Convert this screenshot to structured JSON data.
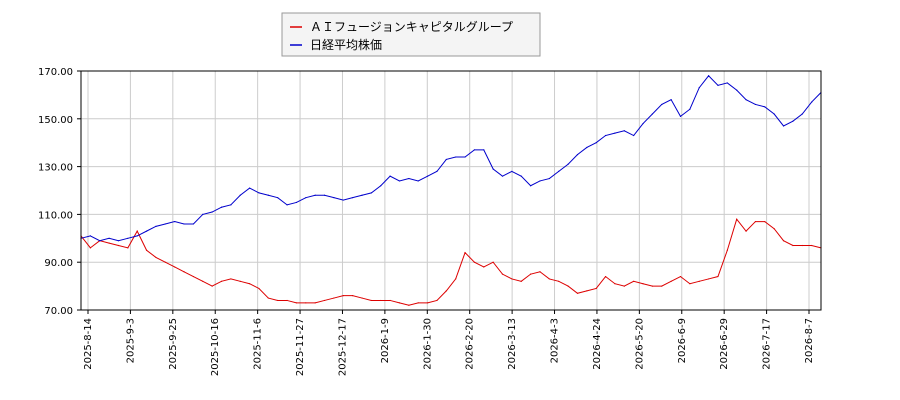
{
  "colors": {
    "series1": "#dd0000",
    "series2": "#0000cc",
    "grid": "#cccccc",
    "axis": "#000000",
    "legend_bg": "#f4f4f4",
    "legend_border": "#999999"
  },
  "chart_data": {
    "type": "line",
    "title": "",
    "xlabel": "",
    "ylabel": "",
    "grid": true,
    "legend_position": "top-center",
    "ylim": [
      70,
      170
    ],
    "y_ticks": [
      "70.00",
      "90.00",
      "110.00",
      "130.00",
      "150.00",
      "170.00"
    ],
    "x_ticks": [
      "2025-8-14",
      "2025-9-3",
      "2025-9-25",
      "2025-10-16",
      "2025-11-6",
      "2025-11-27",
      "2025-12-17",
      "2026-1-9",
      "2026-1-30",
      "2026-2-20",
      "2026-3-13",
      "2026-4-3",
      "2026-4-24",
      "2026-5-20",
      "2026-6-9",
      "2026-6-29",
      "2026-7-17",
      "2026-8-7"
    ],
    "series": [
      {
        "name": "ＡＩフュージョンキャピタルグループ",
        "color": "#dd0000",
        "values": [
          [
            0,
            101
          ],
          [
            1,
            96
          ],
          [
            2,
            99
          ],
          [
            3,
            98
          ],
          [
            4,
            97
          ],
          [
            5,
            96
          ],
          [
            6,
            103
          ],
          [
            7,
            95
          ],
          [
            8,
            92
          ],
          [
            9,
            90
          ],
          [
            10,
            88
          ],
          [
            11,
            86
          ],
          [
            12,
            84
          ],
          [
            13,
            82
          ],
          [
            14,
            80
          ],
          [
            15,
            82
          ],
          [
            16,
            83
          ],
          [
            17,
            82
          ],
          [
            18,
            81
          ],
          [
            19,
            79
          ],
          [
            20,
            75
          ],
          [
            21,
            74
          ],
          [
            22,
            74
          ],
          [
            23,
            73
          ],
          [
            24,
            73
          ],
          [
            25,
            73
          ],
          [
            26,
            74
          ],
          [
            27,
            75
          ],
          [
            28,
            76
          ],
          [
            29,
            76
          ],
          [
            30,
            75
          ],
          [
            31,
            74
          ],
          [
            32,
            74
          ],
          [
            33,
            74
          ],
          [
            34,
            73
          ],
          [
            35,
            72
          ],
          [
            36,
            73
          ],
          [
            37,
            73
          ],
          [
            38,
            74
          ],
          [
            39,
            78
          ],
          [
            40,
            83
          ],
          [
            41,
            94
          ],
          [
            42,
            90
          ],
          [
            43,
            88
          ],
          [
            44,
            90
          ],
          [
            45,
            85
          ],
          [
            46,
            83
          ],
          [
            47,
            82
          ],
          [
            48,
            85
          ],
          [
            49,
            86
          ],
          [
            50,
            83
          ],
          [
            51,
            82
          ],
          [
            52,
            80
          ],
          [
            53,
            77
          ],
          [
            54,
            78
          ],
          [
            55,
            79
          ],
          [
            56,
            84
          ],
          [
            57,
            81
          ],
          [
            58,
            80
          ],
          [
            59,
            82
          ],
          [
            60,
            81
          ],
          [
            61,
            80
          ],
          [
            62,
            80
          ],
          [
            63,
            82
          ],
          [
            64,
            84
          ],
          [
            65,
            81
          ],
          [
            66,
            82
          ],
          [
            67,
            83
          ],
          [
            68,
            84
          ],
          [
            69,
            95
          ],
          [
            70,
            108
          ],
          [
            71,
            103
          ],
          [
            72,
            107
          ],
          [
            73,
            107
          ],
          [
            74,
            104
          ],
          [
            75,
            99
          ],
          [
            76,
            97
          ],
          [
            77,
            97
          ],
          [
            78,
            97
          ],
          [
            79,
            96
          ]
        ]
      },
      {
        "name": "日経平均株価",
        "color": "#0000cc",
        "values": [
          [
            0,
            100
          ],
          [
            1,
            101
          ],
          [
            2,
            99
          ],
          [
            3,
            100
          ],
          [
            4,
            99
          ],
          [
            5,
            100
          ],
          [
            6,
            101
          ],
          [
            7,
            103
          ],
          [
            8,
            105
          ],
          [
            9,
            106
          ],
          [
            10,
            107
          ],
          [
            11,
            106
          ],
          [
            12,
            106
          ],
          [
            13,
            110
          ],
          [
            14,
            111
          ],
          [
            15,
            113
          ],
          [
            16,
            114
          ],
          [
            17,
            118
          ],
          [
            18,
            121
          ],
          [
            19,
            119
          ],
          [
            20,
            118
          ],
          [
            21,
            117
          ],
          [
            22,
            114
          ],
          [
            23,
            115
          ],
          [
            24,
            117
          ],
          [
            25,
            118
          ],
          [
            26,
            118
          ],
          [
            27,
            117
          ],
          [
            28,
            116
          ],
          [
            29,
            117
          ],
          [
            30,
            118
          ],
          [
            31,
            119
          ],
          [
            32,
            122
          ],
          [
            33,
            126
          ],
          [
            34,
            124
          ],
          [
            35,
            125
          ],
          [
            36,
            124
          ],
          [
            37,
            126
          ],
          [
            38,
            128
          ],
          [
            39,
            133
          ],
          [
            40,
            134
          ],
          [
            41,
            134
          ],
          [
            42,
            137
          ],
          [
            43,
            137
          ],
          [
            44,
            129
          ],
          [
            45,
            126
          ],
          [
            46,
            128
          ],
          [
            47,
            126
          ],
          [
            48,
            122
          ],
          [
            49,
            124
          ],
          [
            50,
            125
          ],
          [
            51,
            128
          ],
          [
            52,
            131
          ],
          [
            53,
            135
          ],
          [
            54,
            138
          ],
          [
            55,
            140
          ],
          [
            56,
            143
          ],
          [
            57,
            144
          ],
          [
            58,
            145
          ],
          [
            59,
            143
          ],
          [
            60,
            148
          ],
          [
            61,
            152
          ],
          [
            62,
            156
          ],
          [
            63,
            158
          ],
          [
            64,
            151
          ],
          [
            65,
            154
          ],
          [
            66,
            163
          ],
          [
            67,
            168
          ],
          [
            68,
            164
          ],
          [
            69,
            165
          ],
          [
            70,
            162
          ],
          [
            71,
            158
          ],
          [
            72,
            156
          ],
          [
            73,
            155
          ],
          [
            74,
            152
          ],
          [
            75,
            147
          ],
          [
            76,
            149
          ],
          [
            77,
            152
          ],
          [
            78,
            157
          ],
          [
            79,
            161
          ]
        ]
      }
    ]
  }
}
